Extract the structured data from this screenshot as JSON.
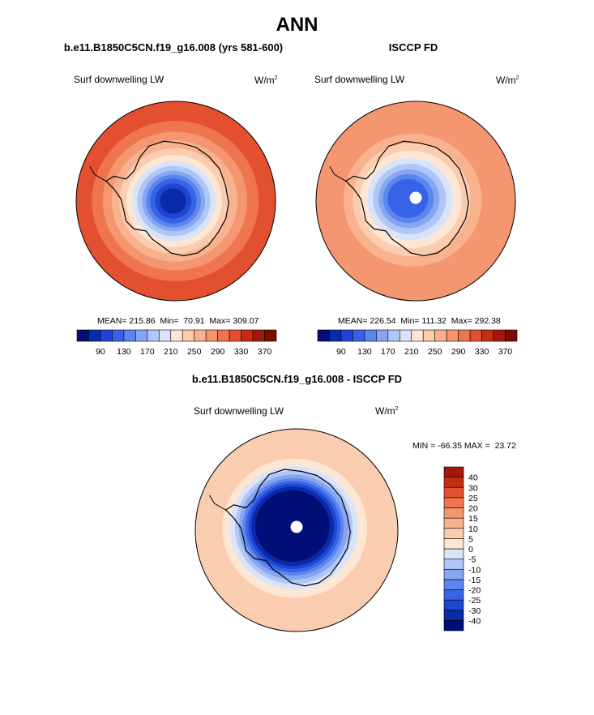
{
  "page_title": "ANN",
  "chart_data": [
    {
      "type": "heatmap",
      "projection": "south-polar-stereographic",
      "title": "b.e11.B1850C5CN.f19_g16.008 (yrs 581-600)",
      "variable": "Surf downwelling LW",
      "units": "W/m",
      "units_exp": "2",
      "stats": {
        "mean_label": "MEAN=",
        "mean": "215.86",
        "min_label": "Min=",
        "min": "70.91",
        "max_label": "Max=",
        "max": "309.07"
      },
      "colorbar": {
        "orientation": "horizontal",
        "levels": [
          80,
          90,
          110,
          130,
          150,
          170,
          190,
          210,
          230,
          250,
          270,
          290,
          310,
          330,
          350,
          370
        ],
        "tick_labels": [
          "90",
          "130",
          "170",
          "210",
          "250",
          "290",
          "330",
          "370"
        ],
        "colors": [
          "#000e78",
          "#0a2aa8",
          "#1e46d2",
          "#3764e6",
          "#5a86ee",
          "#86a6f2",
          "#b0c6f6",
          "#d8e4fa",
          "#fde7d4",
          "#fbcdb0",
          "#f8b28e",
          "#f49670",
          "#ef7550",
          "#e35030",
          "#c32e12",
          "#a3180a",
          "#7a0c00"
        ]
      },
      "rings": [
        {
          "level": 325,
          "fraction": 0.95
        },
        {
          "level": 305,
          "fraction": 0.82
        },
        {
          "level": 285,
          "fraction": 0.71
        },
        {
          "level": 265,
          "fraction": 0.62
        },
        {
          "level": 245,
          "fraction": 0.54
        },
        {
          "level": 225,
          "fraction": 0.47
        },
        {
          "level": 205,
          "fraction": 0.41
        },
        {
          "level": 185,
          "fraction": 0.36
        },
        {
          "level": 165,
          "fraction": 0.31
        },
        {
          "level": 145,
          "fraction": 0.27
        },
        {
          "level": 125,
          "fraction": 0.23
        },
        {
          "level": 105,
          "fraction": 0.18
        },
        {
          "level": 85,
          "fraction": 0.13
        }
      ],
      "pole_missing": false
    },
    {
      "type": "heatmap",
      "projection": "south-polar-stereographic",
      "title": "ISCCP FD",
      "variable": "Surf downwelling LW",
      "units": "W/m",
      "units_exp": "2",
      "stats": {
        "mean_label": "MEAN=",
        "mean": "226.54",
        "min_label": "Min=",
        "min": "111.32",
        "max_label": "Max=",
        "max": "292.38"
      },
      "colorbar": {
        "orientation": "horizontal",
        "levels": [
          80,
          90,
          110,
          130,
          150,
          170,
          190,
          210,
          230,
          250,
          270,
          290,
          310,
          330,
          350,
          370
        ],
        "tick_labels": [
          "90",
          "130",
          "170",
          "210",
          "250",
          "290",
          "330",
          "370"
        ],
        "colors": [
          "#000e78",
          "#0a2aa8",
          "#1e46d2",
          "#3764e6",
          "#5a86ee",
          "#86a6f2",
          "#b0c6f6",
          "#d8e4fa",
          "#fde7d4",
          "#fbcdb0",
          "#f8b28e",
          "#f49670",
          "#ef7550",
          "#e35030",
          "#c32e12",
          "#a3180a",
          "#7a0c00"
        ]
      },
      "rings": [
        {
          "level": 285,
          "fraction": 0.95
        },
        {
          "level": 275,
          "fraction": 0.8
        },
        {
          "level": 260,
          "fraction": 0.68
        },
        {
          "level": 240,
          "fraction": 0.58
        },
        {
          "level": 220,
          "fraction": 0.5
        },
        {
          "level": 200,
          "fraction": 0.42
        },
        {
          "level": 180,
          "fraction": 0.36
        },
        {
          "level": 160,
          "fraction": 0.3
        },
        {
          "level": 140,
          "fraction": 0.25
        },
        {
          "level": 125,
          "fraction": 0.2
        }
      ],
      "pole_missing": true
    },
    {
      "type": "heatmap",
      "projection": "south-polar-stereographic",
      "title": "b.e11.B1850C5CN.f19_g16.008 - ISCCP FD",
      "variable": "Surf downwelling LW",
      "units": "W/m",
      "units_exp": "2",
      "stats": {
        "min_label": "MIN =",
        "min": "-66.35",
        "max_label": "MAX =",
        "max": "23.72"
      },
      "colorbar": {
        "orientation": "vertical",
        "levels": [
          -40,
          -30,
          -25,
          -20,
          -15,
          -10,
          -5,
          0,
          5,
          10,
          15,
          20,
          25,
          30,
          40
        ],
        "tick_labels": [
          "-40",
          "-30",
          "-25",
          "-20",
          "-15",
          "-10",
          "-5",
          "0",
          "5",
          "10",
          "15",
          "20",
          "25",
          "30",
          "40"
        ],
        "colors": [
          "#000e78",
          "#0a2aa8",
          "#1e46d2",
          "#3764e6",
          "#5a86ee",
          "#86a6f2",
          "#b0c6f6",
          "#d8e4fa",
          "#fde7d4",
          "#fbcdb0",
          "#f8b28e",
          "#f49670",
          "#ef7550",
          "#e35030",
          "#c32e12",
          "#a3180a"
        ]
      },
      "rings": [
        {
          "level": 7,
          "fraction": 0.95
        },
        {
          "level": 2,
          "fraction": 0.7
        },
        {
          "level": -3,
          "fraction": 0.62
        },
        {
          "level": -8,
          "fraction": 0.57
        },
        {
          "level": -13,
          "fraction": 0.53
        },
        {
          "level": -18,
          "fraction": 0.49
        },
        {
          "level": -23,
          "fraction": 0.46
        },
        {
          "level": -28,
          "fraction": 0.43
        },
        {
          "level": -35,
          "fraction": 0.4
        },
        {
          "level": -45,
          "fraction": 0.36
        }
      ],
      "pole_missing": true
    }
  ]
}
